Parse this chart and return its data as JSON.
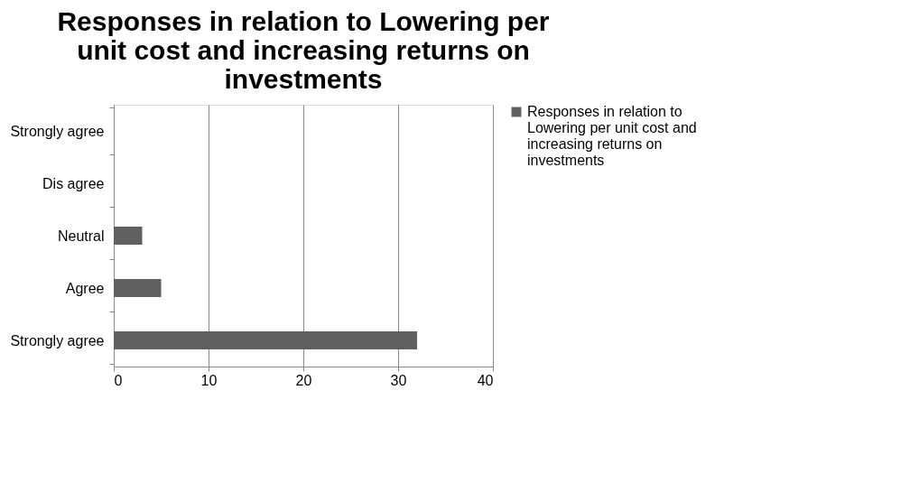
{
  "chart_data": {
    "type": "bar",
    "orientation": "horizontal",
    "title": "Responses in relation to Lowering per unit cost and increasing returns on investments",
    "categories": [
      "Strongly agree",
      "Dis agree",
      "Neutral",
      "Agree",
      "Strongly agree"
    ],
    "series": [
      {
        "name": "Responses in relation to Lowering per unit cost and increasing returns on investments",
        "color": "#606060",
        "values": [
          0,
          0,
          3,
          5,
          32
        ]
      }
    ],
    "xlim": [
      0,
      40
    ],
    "xticks": [
      0,
      10,
      20,
      30,
      40
    ],
    "grid": "x",
    "legend": "right"
  }
}
